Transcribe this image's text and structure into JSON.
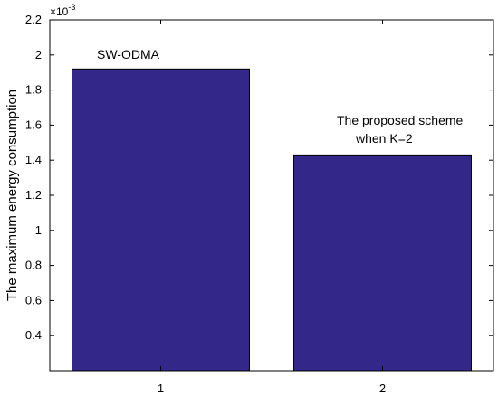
{
  "chart_data": {
    "type": "bar",
    "categories": [
      "1",
      "2"
    ],
    "values": [
      0.00192,
      0.00143
    ],
    "ylim": [
      0.0002,
      0.0022
    ],
    "yticks": [
      0.0004,
      0.0006,
      0.0008,
      0.001,
      0.0012,
      0.0014,
      0.0016,
      0.0018,
      0.002,
      0.0022
    ],
    "ytick_labels": [
      "0.4",
      "0.6",
      "0.8",
      "1",
      "1.2",
      "1.4",
      "1.6",
      "1.8",
      "2",
      "2.2"
    ],
    "y_exponent": "×10",
    "y_exponent_power": "-3",
    "ylabel": "The maximum energy consumption",
    "xlabel": "",
    "title": "",
    "grid": false,
    "bar_color": "#33288a",
    "annotations": [
      {
        "lines": [
          "SW-ODMA"
        ]
      },
      {
        "lines": [
          "The proposed scheme",
          "when K=2"
        ]
      }
    ]
  }
}
